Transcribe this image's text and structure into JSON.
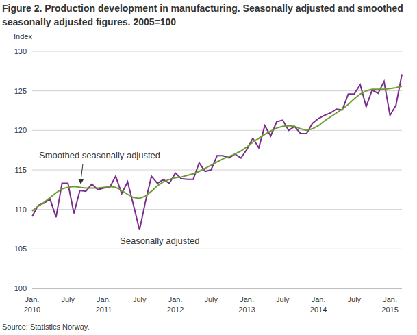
{
  "chart_data": {
    "type": "line",
    "title": "Figure 2. Production development in manufacturing. Seasonally adjusted and smoothed seasonally adjusted figures. 2005=100",
    "y_label": "Index",
    "source": "Source: Statistics Norway.",
    "categories": [
      "Jan. 2010",
      null,
      null,
      null,
      null,
      null,
      "July",
      null,
      null,
      null,
      null,
      null,
      "Jan. 2011",
      null,
      null,
      null,
      null,
      null,
      "July",
      null,
      null,
      null,
      null,
      null,
      "Jan. 2012",
      null,
      null,
      null,
      null,
      null,
      "July",
      null,
      null,
      null,
      null,
      null,
      "Jan. 2013",
      null,
      null,
      null,
      null,
      null,
      "July",
      null,
      null,
      null,
      null,
      null,
      "Jan. 2014",
      null,
      null,
      null,
      null,
      null,
      "July",
      null,
      null,
      null,
      null,
      null,
      "Jan. 2015",
      null,
      null
    ],
    "series": [
      {
        "name": "Seasonally adjusted",
        "color": "#7b2d8e",
        "values": [
          109.1,
          110.5,
          110.8,
          111.3,
          109.0,
          113.3,
          113.3,
          109.5,
          112.4,
          112.3,
          113.2,
          112.5,
          112.7,
          112.8,
          114.2,
          112.0,
          113.5,
          110.5,
          107.4,
          111.0,
          114.2,
          113.3,
          113.8,
          113.3,
          114.6,
          113.9,
          113.8,
          113.8,
          115.9,
          114.8,
          115.0,
          116.8,
          116.8,
          116.5,
          117.0,
          116.5,
          117.6,
          119.0,
          117.8,
          120.6,
          119.3,
          121.1,
          121.3,
          120.0,
          120.5,
          119.6,
          119.6,
          120.9,
          121.5,
          121.9,
          122.2,
          122.7,
          122.6,
          124.6,
          124.6,
          125.8,
          123.0,
          125.1,
          124.7,
          126.2,
          121.9,
          123.2,
          127.1
        ]
      },
      {
        "name": "Smoothed seasonally adjusted",
        "color": "#6a9e2f",
        "values": [
          109.8,
          110.4,
          110.9,
          111.5,
          112.1,
          112.6,
          112.8,
          112.9,
          112.8,
          112.7,
          112.7,
          112.7,
          112.8,
          112.9,
          112.8,
          112.4,
          111.9,
          111.5,
          111.4,
          111.7,
          112.3,
          113.0,
          113.5,
          113.8,
          114.0,
          114.1,
          114.3,
          114.5,
          114.8,
          115.2,
          115.6,
          116.0,
          116.4,
          116.7,
          117.0,
          117.4,
          117.9,
          118.5,
          119.0,
          119.5,
          119.9,
          120.3,
          120.5,
          120.6,
          120.5,
          120.2,
          120.0,
          120.2,
          120.6,
          121.2,
          121.7,
          122.2,
          122.7,
          123.3,
          124.0,
          124.6,
          125.0,
          125.2,
          125.2,
          125.2,
          125.3,
          125.4,
          125.6
        ]
      }
    ],
    "ylim": [
      100,
      130
    ],
    "yticks": [
      100,
      105,
      110,
      115,
      120,
      125,
      130
    ],
    "grid": true
  }
}
